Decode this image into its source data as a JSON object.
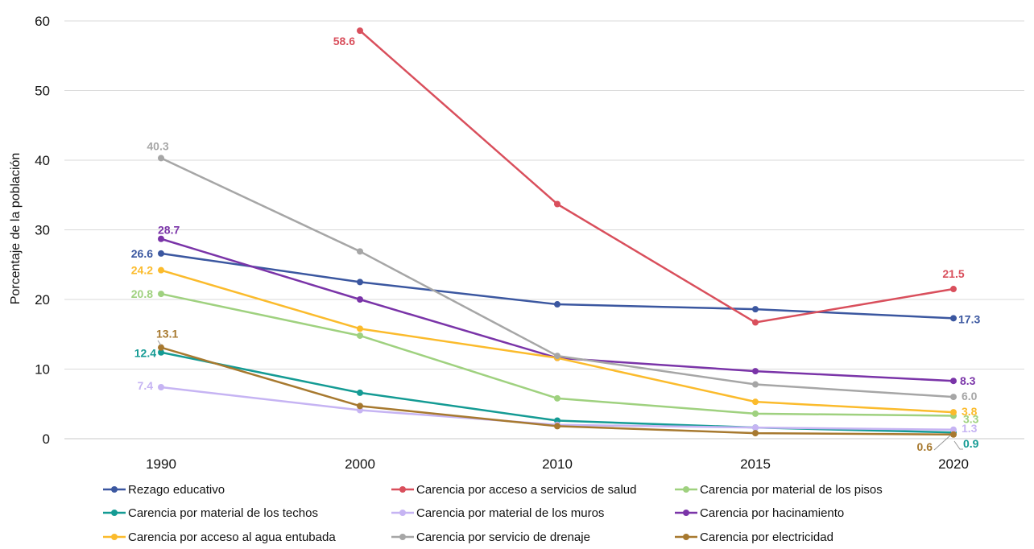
{
  "chart_data": {
    "type": "line",
    "ylabel": "Porcentaje de la población",
    "xlabel": "",
    "ylim": [
      0,
      60
    ],
    "yticks": [
      0,
      10,
      20,
      30,
      40,
      50,
      60
    ],
    "categories": [
      "1990",
      "2000",
      "2010",
      "2015",
      "2020"
    ],
    "grid": "horizontal",
    "legend": "bottom",
    "series": [
      {
        "name": "Rezago educativo",
        "color": "#3b57a0",
        "values": [
          26.6,
          22.5,
          19.3,
          18.6,
          17.3
        ],
        "labels": {
          "0": "26.6",
          "4": "17.3"
        }
      },
      {
        "name": "Carencia por acceso a servicios de salud",
        "color": "#d94f5c",
        "values": [
          null,
          58.6,
          33.7,
          16.7,
          21.5
        ],
        "labels": {
          "1": "58.6",
          "4": "21.5"
        }
      },
      {
        "name": "Carencia por material de los pisos",
        "color": "#9fd17f",
        "values": [
          20.8,
          14.8,
          5.8,
          3.6,
          3.3
        ],
        "labels": {
          "0": "20.8",
          "4": "3.3"
        }
      },
      {
        "name": "Carencia por material de los techos",
        "color": "#149b94",
        "values": [
          12.4,
          6.6,
          2.6,
          1.6,
          0.9
        ],
        "labels": {
          "0": "12.4",
          "4": "0.9"
        }
      },
      {
        "name": "Carencia por material de los muros",
        "color": "#c6b4f3",
        "values": [
          7.4,
          4.1,
          2.0,
          1.6,
          1.3
        ],
        "labels": {
          "0": "7.4",
          "4": "1.3"
        }
      },
      {
        "name": "Carencia por hacinamiento",
        "color": "#7a34a8",
        "values": [
          28.7,
          20.0,
          11.6,
          9.7,
          8.3
        ],
        "labels": {
          "0": "28.7",
          "4": "8.3"
        }
      },
      {
        "name": "Carencia por acceso al agua entubada",
        "color": "#fbbb2c",
        "values": [
          24.2,
          15.8,
          11.6,
          5.3,
          3.8
        ],
        "labels": {
          "0": "24.2",
          "4": "3.8"
        }
      },
      {
        "name": "Carencia por servicio de drenaje",
        "color": "#a6a6a6",
        "values": [
          40.3,
          26.9,
          11.9,
          7.8,
          6.0
        ],
        "labels": {
          "0": "40.3",
          "4": "6.0"
        }
      },
      {
        "name": "Carencia por electricidad",
        "color": "#a7792f",
        "values": [
          13.1,
          4.7,
          1.8,
          0.8,
          0.6
        ],
        "labels": {
          "0": "13.1",
          "4": "0.6"
        }
      }
    ]
  }
}
